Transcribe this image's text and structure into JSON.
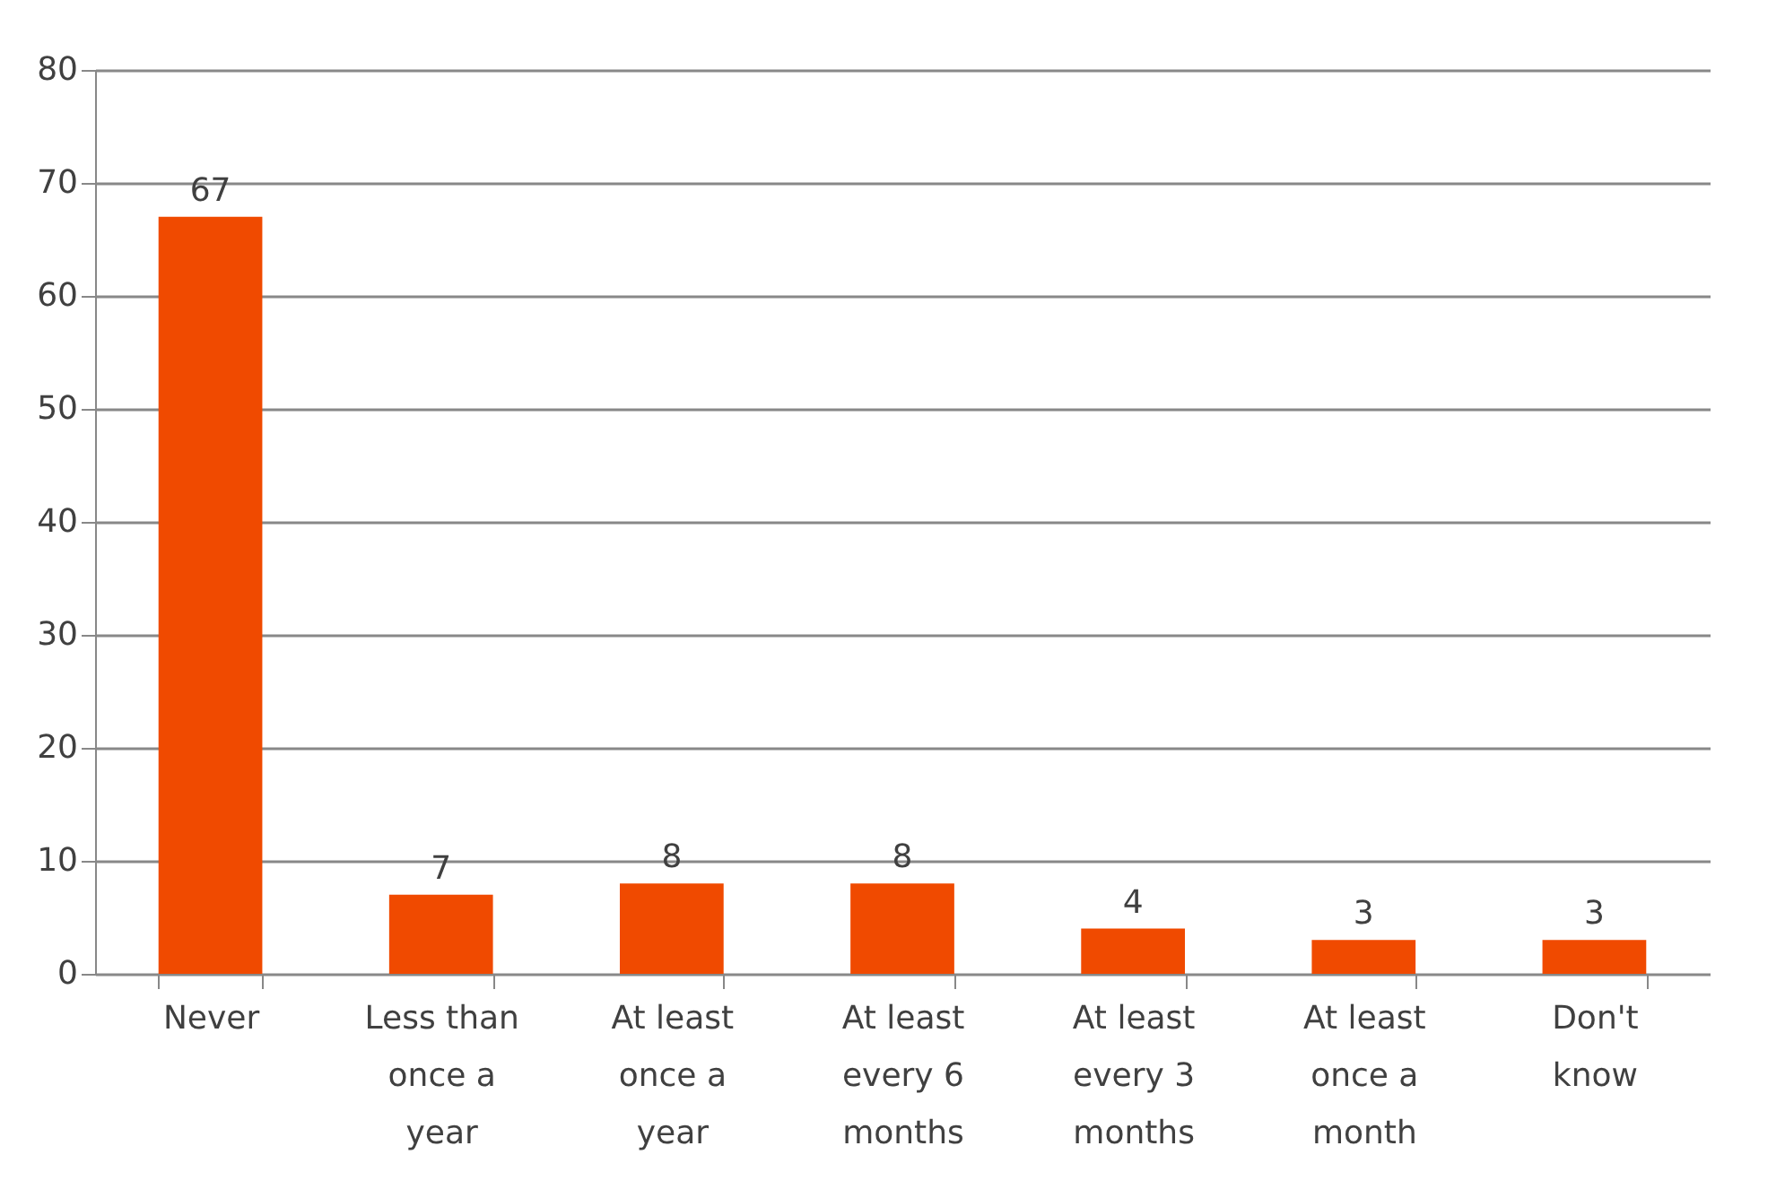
{
  "chart_data": {
    "type": "bar",
    "categories": [
      "Never",
      "Less than once a year",
      "At least once a year",
      "At least every 6 months",
      "At least every 3 months",
      "At least once a month",
      "Don't know"
    ],
    "values": [
      67,
      7,
      8,
      8,
      4,
      3,
      3
    ],
    "color": "#f04a00",
    "ylim": [
      0,
      80
    ],
    "yticks": [
      0,
      10,
      20,
      30,
      40,
      50,
      60,
      70,
      80
    ],
    "grid": "y",
    "data_labels": true
  }
}
